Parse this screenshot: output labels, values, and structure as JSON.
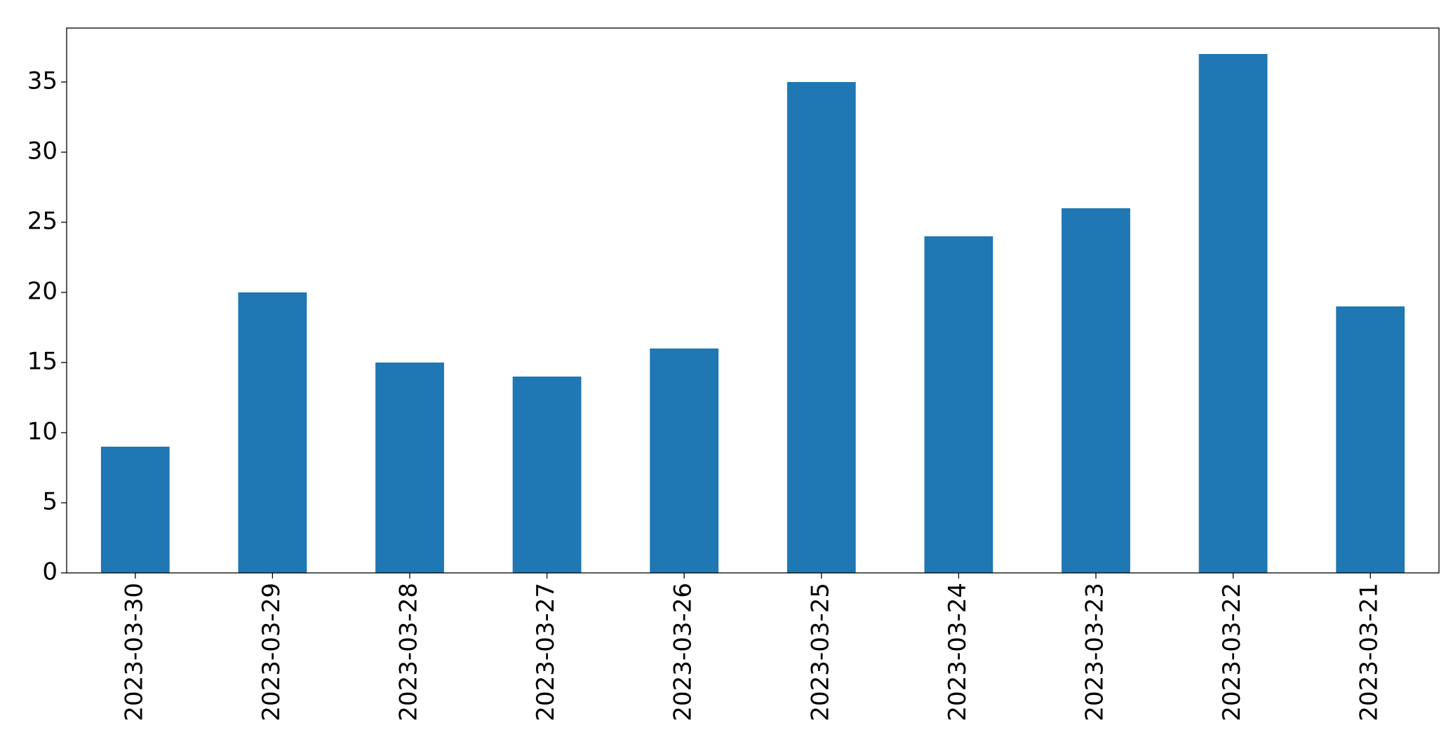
{
  "chart_data": {
    "type": "bar",
    "categories": [
      "2023-03-30",
      "2023-03-29",
      "2023-03-28",
      "2023-03-27",
      "2023-03-26",
      "2023-03-25",
      "2023-03-24",
      "2023-03-23",
      "2023-03-22",
      "2023-03-21"
    ],
    "values": [
      9,
      20,
      15,
      14,
      16,
      35,
      24,
      26,
      37,
      19
    ],
    "color": "#1f77b4",
    "ylim": [
      0,
      38.85
    ],
    "yticks": [
      0,
      5,
      10,
      15,
      20,
      25,
      30,
      35
    ],
    "grid": false
  }
}
